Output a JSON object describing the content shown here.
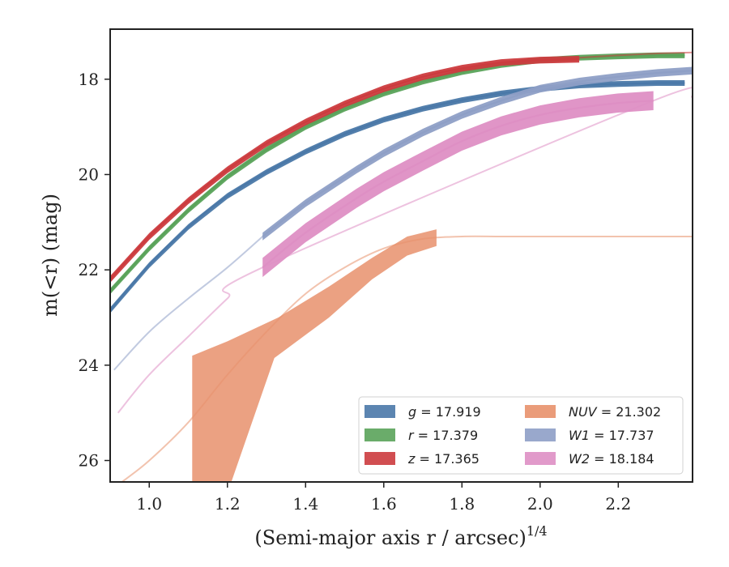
{
  "chart_data": {
    "type": "line",
    "xlabel": "(Semi-major axis r / arcsec)",
    "xlabel_exponent": "1/4",
    "ylabel": "m(<r) (mag)",
    "xlim": [
      0.9,
      2.39
    ],
    "ylim": [
      26.45,
      16.95
    ],
    "y_inverted": true,
    "x_ticks": [
      1.0,
      1.2,
      1.4,
      1.6,
      1.8,
      2.0,
      2.2
    ],
    "x_tick_labels": [
      "1.0",
      "1.2",
      "1.4",
      "1.6",
      "1.8",
      "2.0",
      "2.2"
    ],
    "y_ticks": [
      18,
      20,
      22,
      24,
      26
    ],
    "y_tick_labels": [
      "18",
      "20",
      "22",
      "24",
      "26"
    ],
    "grid": false,
    "legend_position": "bottom-right",
    "legend_columns": 2,
    "series": [
      {
        "name": "g = 17.919",
        "legend_var": "g",
        "legend_value": "17.919",
        "color": "#4a78a8",
        "band_halfwidth": 0.06,
        "x": [
          0.9,
          1.0,
          1.1,
          1.2,
          1.3,
          1.4,
          1.5,
          1.6,
          1.7,
          1.8,
          1.9,
          2.0,
          2.1,
          2.2,
          2.3,
          2.37
        ],
        "y": [
          22.85,
          21.9,
          21.1,
          20.45,
          19.95,
          19.52,
          19.15,
          18.85,
          18.62,
          18.44,
          18.3,
          18.2,
          18.13,
          18.1,
          18.08,
          18.08
        ],
        "fit_x": [],
        "fit_y": []
      },
      {
        "name": "r = 17.379",
        "legend_var": "r",
        "legend_value": "17.379",
        "color": "#5aa35a",
        "band_halfwidth": 0.06,
        "x": [
          0.9,
          1.0,
          1.1,
          1.2,
          1.3,
          1.4,
          1.5,
          1.6,
          1.7,
          1.8,
          1.9,
          2.0,
          2.1,
          2.2,
          2.3,
          2.37
        ],
        "y": [
          22.45,
          21.55,
          20.75,
          20.05,
          19.48,
          19.0,
          18.62,
          18.3,
          18.05,
          17.85,
          17.7,
          17.6,
          17.55,
          17.52,
          17.5,
          17.5
        ],
        "fit_x": [],
        "fit_y": []
      },
      {
        "name": "z = 17.365",
        "legend_var": "z",
        "legend_value": "17.365",
        "color": "#cc3b3e",
        "band_halfwidth": 0.07,
        "x": [
          0.9,
          1.0,
          1.1,
          1.2,
          1.3,
          1.4,
          1.5,
          1.6,
          1.7,
          1.8,
          1.9,
          2.0,
          2.1
        ],
        "y": [
          22.2,
          21.3,
          20.55,
          19.9,
          19.35,
          18.9,
          18.52,
          18.2,
          17.95,
          17.77,
          17.65,
          17.6,
          17.58
        ],
        "fit_x": [
          2.1,
          2.2,
          2.3,
          2.39
        ],
        "fit_y": [
          17.55,
          17.5,
          17.46,
          17.44
        ]
      },
      {
        "name": "NUV = 21.302",
        "legend_var": "NUV",
        "legend_value": "21.302",
        "color": "#e8916c",
        "band_upper_x": [
          1.11,
          1.2,
          1.33,
          1.46,
          1.57,
          1.66,
          1.735
        ],
        "band_upper_y": [
          23.8,
          23.5,
          23.0,
          22.35,
          21.75,
          21.3,
          21.15
        ],
        "band_lower_x": [
          1.735,
          1.66,
          1.57,
          1.46,
          1.32,
          1.21,
          1.11
        ],
        "band_lower_y": [
          21.5,
          21.7,
          22.2,
          23.0,
          23.85,
          26.45,
          26.45
        ],
        "fit_x": [
          0.93,
          1.0,
          1.1,
          1.2,
          1.3,
          1.4,
          1.5,
          1.6,
          1.7,
          1.8,
          1.9,
          2.0,
          2.1,
          2.2,
          2.3,
          2.39
        ],
        "fit_y": [
          26.45,
          26.0,
          25.2,
          24.2,
          23.3,
          22.5,
          21.95,
          21.55,
          21.35,
          21.3,
          21.3,
          21.3,
          21.3,
          21.3,
          21.3,
          21.3
        ]
      },
      {
        "name": "W1 = 17.737",
        "legend_var": "W1",
        "legend_value": "17.737",
        "color": "#8e9fc6",
        "band_halfwidth": 0.08,
        "x": [
          1.29,
          1.4,
          1.53,
          1.6,
          1.7,
          1.8,
          1.9,
          2.0,
          2.1,
          2.2,
          2.3,
          2.39
        ],
        "y": [
          21.3,
          20.6,
          19.9,
          19.55,
          19.12,
          18.75,
          18.45,
          18.2,
          18.05,
          17.95,
          17.87,
          17.82
        ],
        "fit_x": [
          0.91,
          1.0,
          1.1,
          1.2,
          1.29
        ],
        "fit_y": [
          24.1,
          23.3,
          22.6,
          21.95,
          21.3
        ]
      },
      {
        "name": "W2 = 18.184",
        "legend_var": "W2",
        "legend_value": "18.184",
        "color": "#de8fc4",
        "band_halfwidth": 0.2,
        "x": [
          1.29,
          1.4,
          1.53,
          1.6,
          1.7,
          1.8,
          1.9,
          2.0,
          2.1,
          2.2,
          2.29
        ],
        "y": [
          21.95,
          21.22,
          20.5,
          20.15,
          19.72,
          19.3,
          18.98,
          18.75,
          18.6,
          18.5,
          18.45
        ],
        "fit_x": [
          0.92,
          1.0,
          1.1,
          1.2,
          1.29,
          2.29,
          2.39
        ],
        "fit_y": [
          25.0,
          24.2,
          23.4,
          22.6,
          21.95,
          18.45,
          18.38
        ]
      }
    ]
  }
}
